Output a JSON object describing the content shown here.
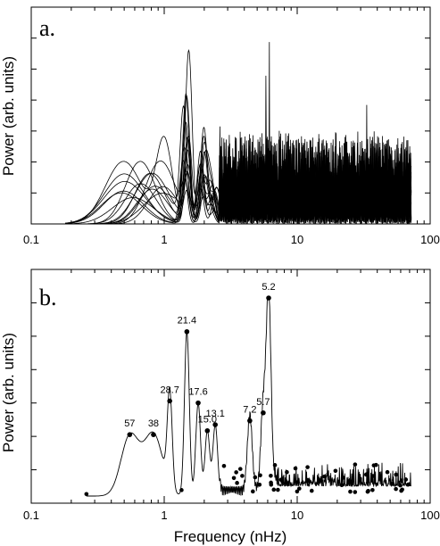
{
  "panel_a": {
    "letter": "a."
  },
  "panel_b": {
    "letter": "b."
  },
  "chart_data": [
    {
      "type": "line",
      "panel": "a.",
      "title": "",
      "xlabel": "",
      "ylabel": "Power (arb. units)",
      "xscale": "log",
      "xlim": [
        0.1,
        100
      ],
      "xticks": [
        "0.1",
        "1",
        "10",
        "100"
      ],
      "grid": false,
      "series_count": 20,
      "frequency_range_nHz": [
        0.18,
        72
      ],
      "main_peaks_nHz": [
        0.6,
        1.0,
        1.5,
        1.9,
        5.9,
        33
      ],
      "note": "Overlaid individual power spectra; y-axis has tick marks only, no values"
    },
    {
      "type": "line",
      "panel": "b.",
      "title": "",
      "xlabel": "Frequency (nHz)",
      "ylabel": "Power (arb. units)",
      "xscale": "log",
      "xlim": [
        0.1,
        100
      ],
      "xticks": [
        "0.1",
        "1",
        "10",
        "100"
      ],
      "grid": false,
      "peaks": [
        {
          "label": "57",
          "freq": 0.55,
          "power": 0.31
        },
        {
          "label": "38",
          "freq": 0.83,
          "power": 0.31
        },
        {
          "label": "28.7",
          "freq": 1.1,
          "power": 0.48
        },
        {
          "label": "21.4",
          "freq": 1.48,
          "power": 0.83
        },
        {
          "label": "17.6",
          "freq": 1.8,
          "power": 0.47
        },
        {
          "label": "15.0",
          "freq": 2.11,
          "power": 0.33
        },
        {
          "label": "13.1",
          "freq": 2.42,
          "power": 0.36
        },
        {
          "label": "7.2",
          "freq": 4.4,
          "power": 0.38
        },
        {
          "label": "5.7",
          "freq": 5.55,
          "power": 0.42
        },
        {
          "label": "5.2",
          "freq": 6.1,
          "power": 1.0
        }
      ]
    }
  ]
}
